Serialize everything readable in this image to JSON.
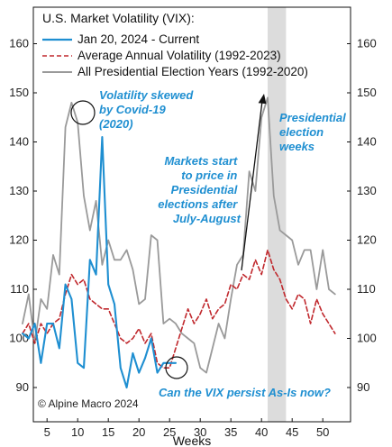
{
  "chart_data": {
    "type": "line",
    "title": "U.S. Market Volatility (VIX):",
    "xlabel": "Weeks",
    "ylabel": "",
    "xlim": [
      1,
      53
    ],
    "ylim": [
      87,
      167
    ],
    "x_ticks": [
      5,
      10,
      15,
      20,
      25,
      30,
      35,
      40,
      45,
      50
    ],
    "y_ticks": [
      90,
      100,
      110,
      120,
      130,
      140,
      150,
      160
    ],
    "legend_placement": "top-left",
    "grid": false,
    "credit": "© Alpine Macro 2024",
    "shaded_region": {
      "x_start": 41,
      "x_end": 44,
      "color": "#dcdcdc"
    },
    "series": [
      {
        "name": "Jan 20, 2024 - Current",
        "style": "solid",
        "color": "#1f8fd1",
        "x": [
          1,
          2,
          3,
          4,
          5,
          6,
          7,
          8,
          9,
          10,
          11,
          12,
          13,
          14,
          15,
          16,
          17,
          18,
          19,
          20,
          21,
          22,
          23,
          24,
          25,
          26
        ],
        "y": [
          101,
          100,
          103,
          95,
          103,
          103,
          98,
          111,
          108,
          95,
          94,
          116,
          113,
          141,
          111,
          107,
          94,
          90,
          97,
          93,
          96,
          100,
          93,
          95,
          95,
          95
        ]
      },
      {
        "name": "Average Annual Volatility (1992-2023)",
        "style": "dashed",
        "color": "#c0282d",
        "x": [
          1,
          2,
          3,
          4,
          5,
          6,
          7,
          8,
          9,
          10,
          11,
          12,
          13,
          14,
          15,
          16,
          17,
          18,
          19,
          20,
          21,
          22,
          23,
          24,
          25,
          26,
          27,
          28,
          29,
          30,
          31,
          32,
          33,
          34,
          35,
          36,
          37,
          38,
          39,
          40,
          41,
          42,
          43,
          44,
          45,
          46,
          47,
          48,
          49,
          50,
          51,
          52
        ],
        "y": [
          101,
          103,
          99,
          103,
          101,
          103,
          104,
          109,
          113,
          111,
          112,
          108,
          107,
          106,
          106,
          103,
          100,
          99,
          100,
          102,
          99,
          101,
          95,
          94,
          94,
          98,
          102,
          106,
          103,
          105,
          108,
          104,
          106,
          107,
          111,
          110,
          113,
          112,
          116,
          113,
          118,
          114,
          112,
          108,
          106,
          109,
          108,
          103,
          108,
          105,
          103,
          101
        ]
      },
      {
        "name": "All Presidential Election Years (1992-2020)",
        "style": "solid",
        "color": "#9a9a9a",
        "x": [
          1,
          2,
          3,
          4,
          5,
          6,
          7,
          8,
          9,
          10,
          11,
          12,
          13,
          14,
          15,
          16,
          17,
          18,
          19,
          20,
          21,
          22,
          23,
          24,
          25,
          26,
          27,
          28,
          29,
          30,
          31,
          32,
          33,
          34,
          35,
          36,
          37,
          38,
          39,
          40,
          41,
          42,
          43,
          44,
          45,
          46,
          47,
          48,
          49,
          50,
          51,
          52
        ],
        "y": [
          103,
          109,
          99,
          108,
          106,
          117,
          113,
          143,
          148,
          144,
          129,
          122,
          128,
          115,
          120,
          116,
          116,
          118,
          114,
          107,
          108,
          121,
          120,
          103,
          104,
          103,
          101,
          100,
          99,
          94,
          93,
          98,
          103,
          100,
          108,
          115,
          117,
          134,
          130,
          145,
          149,
          129,
          122,
          121,
          120,
          115,
          118,
          118,
          110,
          118,
          110,
          109
        ]
      }
    ],
    "annotations": [
      {
        "text_lines": [
          "Volatility skewed",
          "by Covid-19",
          "(2020)"
        ]
      },
      {
        "text_lines": [
          "Markets start",
          "to price in",
          "Presidential",
          "elections after",
          "July-August"
        ]
      },
      {
        "text_lines": [
          "Presidential",
          "election",
          "weeks"
        ]
      },
      {
        "text_lines": [
          "Can the VIX persist As-Is now?"
        ]
      }
    ]
  }
}
